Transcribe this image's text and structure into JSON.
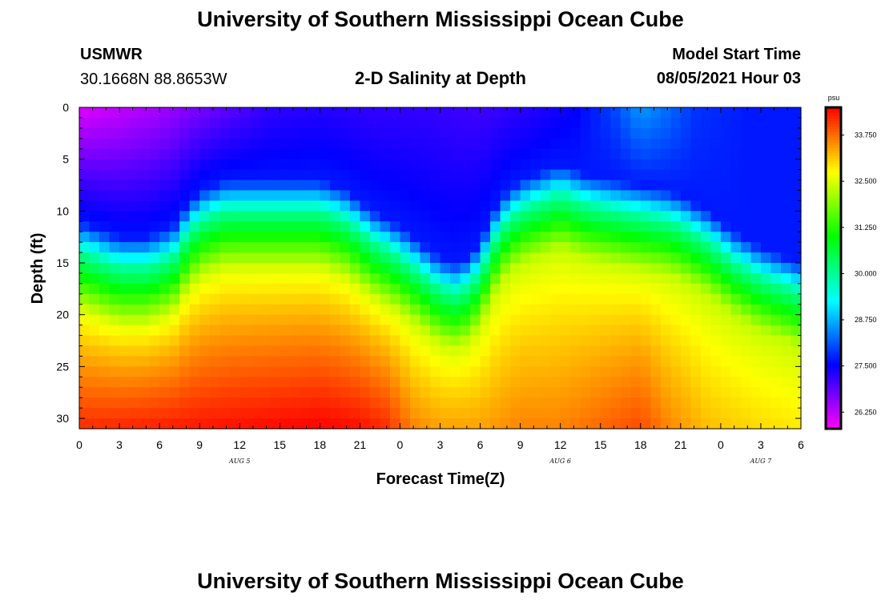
{
  "header": {
    "title": "University of Southern Mississippi Ocean Cube",
    "station": "USMWR",
    "location": "30.1668N  88.8653W",
    "subtitle": "2-D Salinity at Depth",
    "model_start_label": "Model Start Time",
    "model_start_value": "08/05/2021 Hour 03"
  },
  "footer": {
    "title": "University of Southern Mississippi Ocean Cube"
  },
  "chart_data": {
    "type": "heatmap",
    "title": "2-D Salinity at Depth",
    "xlabel": "Forecast Time(Z)",
    "ylabel": "Depth (ft)",
    "x_range_hours": [
      0,
      54
    ],
    "x_ticks": [
      {
        "h": 0,
        "label": "0"
      },
      {
        "h": 3,
        "label": "3"
      },
      {
        "h": 6,
        "label": "6"
      },
      {
        "h": 9,
        "label": "9"
      },
      {
        "h": 12,
        "label": "12"
      },
      {
        "h": 15,
        "label": "15"
      },
      {
        "h": 18,
        "label": "18"
      },
      {
        "h": 21,
        "label": "21"
      },
      {
        "h": 24,
        "label": "0"
      },
      {
        "h": 27,
        "label": "3"
      },
      {
        "h": 30,
        "label": "6"
      },
      {
        "h": 33,
        "label": "9"
      },
      {
        "h": 36,
        "label": "12"
      },
      {
        "h": 39,
        "label": "15"
      },
      {
        "h": 42,
        "label": "18"
      },
      {
        "h": 45,
        "label": "21"
      },
      {
        "h": 48,
        "label": "0"
      },
      {
        "h": 51,
        "label": "3"
      },
      {
        "h": 54,
        "label": "6"
      }
    ],
    "date_labels": [
      {
        "h": 12,
        "label": "AUG 5"
      },
      {
        "h": 36,
        "label": "AUG 6"
      },
      {
        "h": 51,
        "label": "AUG 7"
      }
    ],
    "y_range_ft": [
      0,
      31
    ],
    "y_ticks": [
      0,
      5,
      10,
      15,
      20,
      25,
      30
    ],
    "colorbar": {
      "unit": "psu",
      "range": [
        25.8,
        34.5
      ],
      "ticks": [
        "26.250",
        "27.500",
        "28.750",
        "30.000",
        "31.250",
        "32.500",
        "33.750"
      ],
      "tick_values": [
        26.25,
        27.5,
        28.75,
        30.0,
        31.25,
        32.5,
        33.75
      ]
    },
    "interface_depth_ft": [
      [
        0,
        14
      ],
      [
        3,
        15.5
      ],
      [
        5,
        15.5
      ],
      [
        7,
        14.5
      ],
      [
        8,
        12.5
      ],
      [
        9,
        11
      ],
      [
        11,
        10
      ],
      [
        15,
        10
      ],
      [
        18,
        10
      ],
      [
        20,
        11
      ],
      [
        22,
        13
      ],
      [
        24,
        14.5
      ],
      [
        26,
        16.5
      ],
      [
        27,
        17.5
      ],
      [
        28,
        18
      ],
      [
        29,
        17.5
      ],
      [
        30,
        16
      ],
      [
        31,
        13
      ],
      [
        32,
        11
      ],
      [
        33,
        10
      ],
      [
        34,
        9.5
      ],
      [
        35,
        9
      ],
      [
        36,
        8.5
      ],
      [
        38,
        9.5
      ],
      [
        40,
        10
      ],
      [
        42,
        10.5
      ],
      [
        44,
        11
      ],
      [
        45,
        11.5
      ],
      [
        47,
        13
      ],
      [
        49,
        15
      ],
      [
        51,
        16.5
      ],
      [
        53,
        17.5
      ],
      [
        54,
        18
      ]
    ],
    "surface_salinity_psu": [
      [
        0,
        26.0
      ],
      [
        6,
        26.4
      ],
      [
        10,
        26.8
      ],
      [
        14,
        27.2
      ],
      [
        18,
        27.3
      ],
      [
        22,
        27.2
      ],
      [
        26,
        27.2
      ],
      [
        30,
        27.1
      ],
      [
        34,
        27.3
      ],
      [
        37,
        27.5
      ],
      [
        40,
        28.0
      ],
      [
        42,
        28.6
      ],
      [
        44,
        28.3
      ],
      [
        46,
        27.9
      ],
      [
        50,
        27.7
      ],
      [
        54,
        27.7
      ]
    ],
    "bottom_salinity_psu": [
      [
        0,
        34.2
      ],
      [
        6,
        34.3
      ],
      [
        12,
        34.4
      ],
      [
        18,
        34.5
      ],
      [
        21,
        34.4
      ],
      [
        23,
        34.2
      ],
      [
        25,
        33.6
      ],
      [
        27,
        33.4
      ],
      [
        30,
        33.4
      ],
      [
        33,
        33.6
      ],
      [
        36,
        33.6
      ],
      [
        39,
        33.8
      ],
      [
        42,
        34.0
      ],
      [
        44,
        33.6
      ],
      [
        47,
        33.2
      ],
      [
        51,
        33.0
      ],
      [
        54,
        32.9
      ]
    ]
  }
}
